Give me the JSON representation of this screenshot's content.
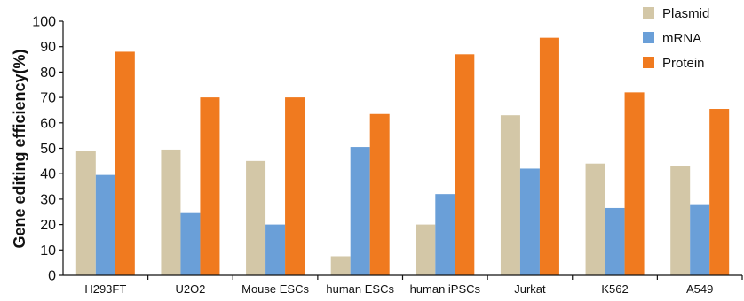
{
  "chart_data": {
    "type": "bar",
    "title": "",
    "xlabel": "",
    "ylabel": "Gene editing efficiency(%)",
    "ylim": [
      0,
      100
    ],
    "yticks": [
      0,
      10,
      20,
      30,
      40,
      50,
      60,
      70,
      80,
      90,
      100
    ],
    "grid": false,
    "legend_position": "top-right",
    "categories": [
      "H293FT",
      "U2O2",
      "Mouse ESCs",
      "human ESCs",
      "human iPSCs",
      "Jurkat",
      "K562",
      "A549"
    ],
    "series": [
      {
        "name": "Plasmid",
        "color": "#d3c7a7",
        "values": [
          49,
          49.5,
          45,
          7.5,
          20,
          63,
          44,
          43
        ]
      },
      {
        "name": "mRNA",
        "color": "#6a9fd8",
        "values": [
          39.5,
          24.5,
          20,
          50.5,
          32,
          42,
          26.5,
          28
        ]
      },
      {
        "name": "Protein",
        "color": "#f07a1f",
        "values": [
          88,
          70,
          70,
          63.5,
          87,
          93.5,
          72,
          65.5
        ]
      }
    ]
  }
}
